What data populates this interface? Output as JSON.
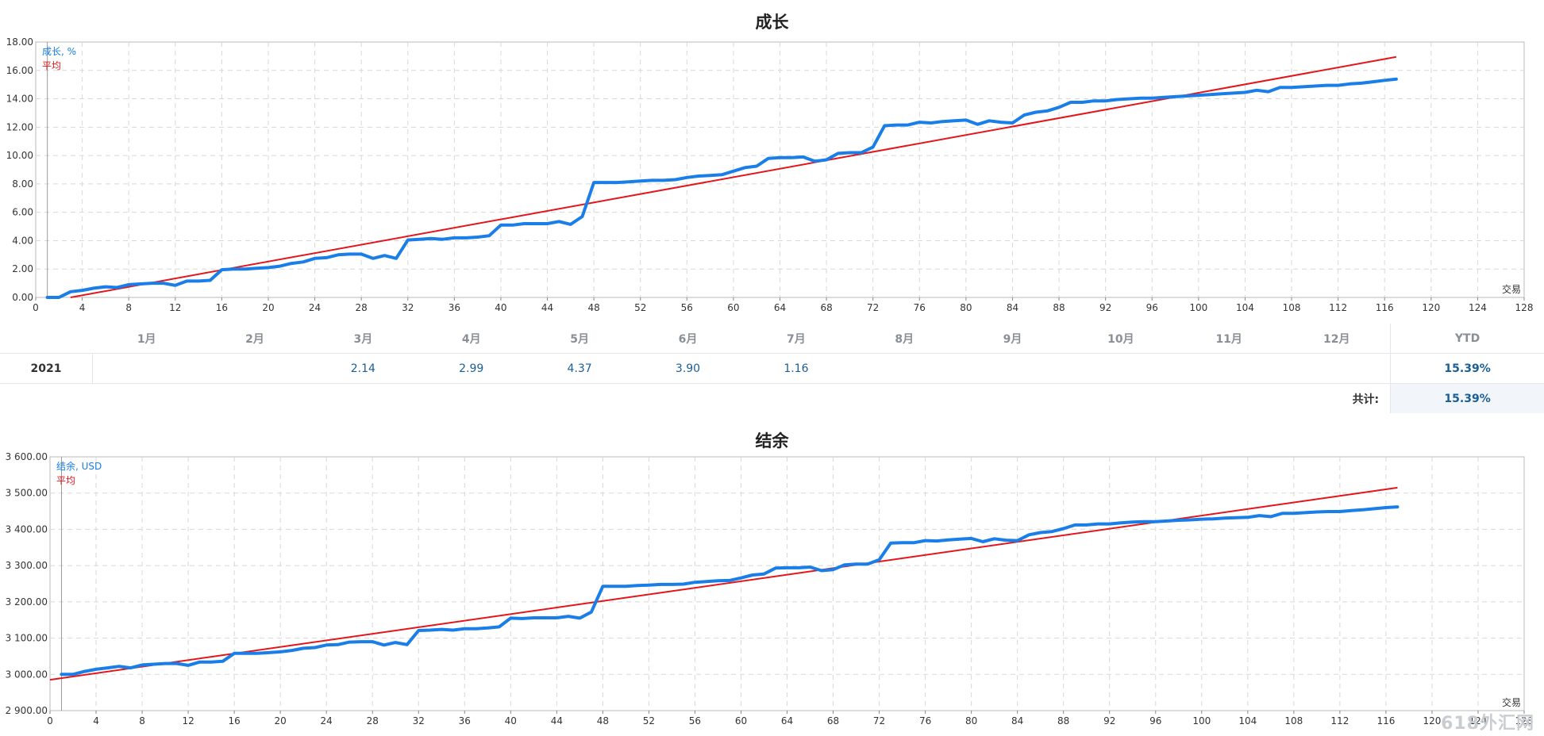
{
  "charts": {
    "growth": {
      "title": "成长",
      "series_label": "成长, %",
      "avg_label": "平均",
      "x_axis_label": "交易"
    },
    "balance": {
      "title": "结余",
      "series_label": "结余, USD",
      "avg_label": "平均",
      "x_axis_label": "交易"
    }
  },
  "monthly_table": {
    "months": [
      "1月",
      "2月",
      "3月",
      "4月",
      "5月",
      "6月",
      "7月",
      "8月",
      "9月",
      "10月",
      "11月",
      "12月"
    ],
    "ytd_header": "YTD",
    "year": "2021",
    "values": [
      "",
      "",
      "2.14",
      "2.99",
      "4.37",
      "3.90",
      "1.16",
      "",
      "",
      "",
      "",
      ""
    ],
    "ytd": "15.39%",
    "total_label": "共计:",
    "total": "15.39%"
  },
  "watermark": "618外汇网",
  "colors": {
    "series": "#1a7ee8",
    "average": "#e4161b",
    "grid": "#d8d8d8",
    "value_text": "#1a5e96"
  },
  "chart_data": [
    {
      "type": "line",
      "title": "成长",
      "xlabel": "交易",
      "ylabel": "成长, %",
      "xlim": [
        0,
        128
      ],
      "ylim": [
        0,
        18
      ],
      "x_ticks": [
        0,
        4,
        8,
        12,
        16,
        20,
        24,
        28,
        32,
        36,
        40,
        44,
        48,
        52,
        56,
        60,
        64,
        68,
        72,
        76,
        80,
        84,
        88,
        92,
        96,
        100,
        104,
        108,
        112,
        116,
        120,
        124,
        128
      ],
      "y_ticks": [
        "0.00",
        "2.00",
        "4.00",
        "6.00",
        "8.00",
        "10.00",
        "12.00",
        "14.00",
        "16.00",
        "18.00"
      ],
      "grid": true,
      "legend": "top-left",
      "series": [
        {
          "name": "成长, %",
          "x": [
            1,
            2,
            3,
            4,
            5,
            6,
            7,
            8,
            9,
            10,
            11,
            12,
            13,
            14,
            15,
            16,
            17,
            18,
            19,
            20,
            21,
            22,
            23,
            24,
            25,
            26,
            27,
            28,
            29,
            30,
            31,
            32,
            33,
            34,
            35,
            36,
            37,
            38,
            39,
            40,
            41,
            42,
            43,
            44,
            45,
            46,
            47,
            48,
            49,
            50,
            51,
            52,
            53,
            54,
            55,
            56,
            57,
            58,
            59,
            60,
            61,
            62,
            63,
            64,
            65,
            66,
            67,
            68,
            69,
            70,
            71,
            72,
            73,
            74,
            75,
            76,
            77,
            78,
            79,
            80,
            81,
            82,
            83,
            84,
            85,
            86,
            87,
            88,
            89,
            90,
            91,
            92,
            93,
            94,
            95,
            96,
            97,
            98,
            99,
            100,
            101,
            102,
            103,
            104,
            105,
            106,
            107,
            108,
            109,
            110,
            111,
            112,
            113,
            114,
            115,
            116,
            117
          ],
          "y": [
            0.0,
            0.0,
            0.4,
            0.5,
            0.65,
            0.75,
            0.7,
            0.9,
            0.95,
            1.0,
            1.0,
            0.85,
            1.15,
            1.15,
            1.2,
            1.95,
            2.0,
            2.0,
            2.05,
            2.1,
            2.2,
            2.4,
            2.5,
            2.75,
            2.8,
            3.0,
            3.05,
            3.05,
            2.75,
            2.95,
            2.75,
            4.05,
            4.1,
            4.15,
            4.1,
            4.2,
            4.2,
            4.25,
            4.35,
            5.1,
            5.1,
            5.2,
            5.2,
            5.2,
            5.35,
            5.15,
            5.7,
            8.1,
            8.1,
            8.1,
            8.15,
            8.2,
            8.25,
            8.25,
            8.3,
            8.45,
            8.55,
            8.6,
            8.65,
            8.9,
            9.15,
            9.25,
            9.8,
            9.85,
            9.85,
            9.9,
            9.6,
            9.7,
            10.15,
            10.2,
            10.2,
            10.6,
            12.1,
            12.15,
            12.15,
            12.35,
            12.3,
            12.4,
            12.45,
            12.5,
            12.2,
            12.45,
            12.35,
            12.3,
            12.85,
            13.05,
            13.15,
            13.4,
            13.75,
            13.75,
            13.85,
            13.85,
            13.95,
            14.0,
            14.05,
            14.05,
            14.1,
            14.15,
            14.2,
            14.25,
            14.3,
            14.35,
            14.4,
            14.45,
            14.6,
            14.5,
            14.8,
            14.8,
            14.85,
            14.9,
            14.95,
            14.95,
            15.05,
            15.1,
            15.2,
            15.3,
            15.39
          ]
        },
        {
          "name": "平均",
          "x": [
            3,
            117
          ],
          "y": [
            0.0,
            16.95
          ]
        }
      ]
    },
    {
      "type": "line",
      "title": "结余",
      "xlabel": "交易",
      "ylabel": "结余, USD",
      "xlim": [
        0,
        128
      ],
      "ylim": [
        2900,
        3600
      ],
      "x_ticks": [
        0,
        4,
        8,
        12,
        16,
        20,
        24,
        28,
        32,
        36,
        40,
        44,
        48,
        52,
        56,
        60,
        64,
        68,
        72,
        76,
        80,
        84,
        88,
        92,
        96,
        100,
        104,
        108,
        112,
        116,
        120,
        124,
        128
      ],
      "y_ticks": [
        "2 900.00",
        "3 000.00",
        "3 100.00",
        "3 200.00",
        "3 300.00",
        "3 400.00",
        "3 500.00",
        "3 600.00"
      ],
      "grid": true,
      "legend": "top-left",
      "series": [
        {
          "name": "结余, USD",
          "x": [
            1,
            2,
            3,
            4,
            5,
            6,
            7,
            8,
            9,
            10,
            11,
            12,
            13,
            14,
            15,
            16,
            17,
            18,
            19,
            20,
            21,
            22,
            23,
            24,
            25,
            26,
            27,
            28,
            29,
            30,
            31,
            32,
            33,
            34,
            35,
            36,
            37,
            38,
            39,
            40,
            41,
            42,
            43,
            44,
            45,
            46,
            47,
            48,
            49,
            50,
            51,
            52,
            53,
            54,
            55,
            56,
            57,
            58,
            59,
            60,
            61,
            62,
            63,
            64,
            65,
            66,
            67,
            68,
            69,
            70,
            71,
            72,
            73,
            74,
            75,
            76,
            77,
            78,
            79,
            80,
            81,
            82,
            83,
            84,
            85,
            86,
            87,
            88,
            89,
            90,
            91,
            92,
            93,
            94,
            95,
            96,
            97,
            98,
            99,
            100,
            101,
            102,
            103,
            104,
            105,
            106,
            107,
            108,
            109,
            110,
            111,
            112,
            113,
            114,
            115,
            116,
            117
          ],
          "y": [
            3000,
            3000,
            3008,
            3014,
            3018,
            3022,
            3018,
            3026,
            3028,
            3030,
            3030,
            3025,
            3034,
            3034,
            3036,
            3058,
            3058,
            3058,
            3060,
            3062,
            3066,
            3072,
            3074,
            3081,
            3082,
            3089,
            3090,
            3090,
            3081,
            3088,
            3082,
            3121,
            3122,
            3124,
            3122,
            3126,
            3126,
            3128,
            3131,
            3155,
            3154,
            3156,
            3156,
            3156,
            3160,
            3155,
            3172,
            3243,
            3243,
            3243,
            3245,
            3246,
            3248,
            3248,
            3249,
            3254,
            3256,
            3258,
            3259,
            3266,
            3274,
            3277,
            3293,
            3294,
            3294,
            3296,
            3286,
            3289,
            3302,
            3304,
            3304,
            3316,
            3362,
            3363,
            3363,
            3369,
            3368,
            3371,
            3373,
            3375,
            3366,
            3374,
            3370,
            3369,
            3385,
            3391,
            3394,
            3402,
            3412,
            3412,
            3415,
            3415,
            3418,
            3420,
            3421,
            3421,
            3423,
            3425,
            3426,
            3428,
            3429,
            3431,
            3432,
            3433,
            3438,
            3435,
            3444,
            3444,
            3446,
            3448,
            3449,
            3449,
            3452,
            3454,
            3457,
            3460,
            3462
          ]
        },
        {
          "name": "平均",
          "x": [
            0,
            117
          ],
          "y": [
            2985,
            3515
          ]
        }
      ]
    }
  ]
}
